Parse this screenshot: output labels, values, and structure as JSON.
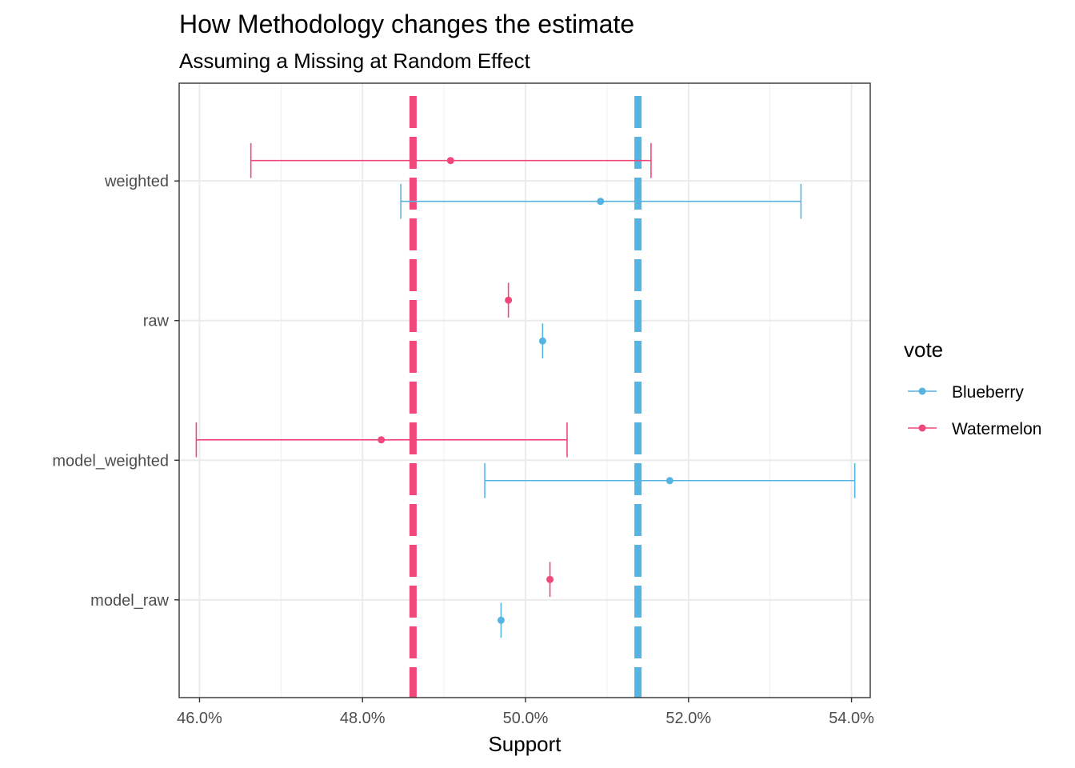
{
  "chart_data": {
    "type": "scatter",
    "title": "How Methodology changes the estimate",
    "subtitle": "Assuming a Missing at Random Effect",
    "xlabel": "Support",
    "ylabel": "",
    "xlim": [
      45.75,
      54.23
    ],
    "x_ticks": [
      46.0,
      48.0,
      50.0,
      52.0,
      54.0
    ],
    "x_tick_labels": [
      "46.0%",
      "48.0%",
      "50.0%",
      "52.0%",
      "54.0%"
    ],
    "categories": [
      "model_raw",
      "model_weighted",
      "raw",
      "weighted"
    ],
    "grid": true,
    "legend": {
      "title": "vote",
      "position": "right"
    },
    "reference_lines": [
      {
        "series": "Watermelon",
        "x": 48.62,
        "style": "dashed"
      },
      {
        "series": "Blueberry",
        "x": 51.38,
        "style": "dashed"
      }
    ],
    "series": [
      {
        "name": "Blueberry",
        "color": "#56b4e2",
        "points": [
          {
            "category": "model_raw",
            "x": 49.7,
            "lower": 49.7,
            "upper": 49.7
          },
          {
            "category": "model_weighted",
            "x": 51.77,
            "lower": 49.5,
            "upper": 54.04
          },
          {
            "category": "raw",
            "x": 50.21,
            "lower": 50.21,
            "upper": 50.21
          },
          {
            "category": "weighted",
            "x": 50.92,
            "lower": 48.47,
            "upper": 53.38
          }
        ]
      },
      {
        "name": "Watermelon",
        "color": "#f1487b",
        "points": [
          {
            "category": "model_raw",
            "x": 50.3,
            "lower": 50.3,
            "upper": 50.3
          },
          {
            "category": "model_weighted",
            "x": 48.23,
            "lower": 45.96,
            "upper": 50.51
          },
          {
            "category": "raw",
            "x": 49.79,
            "lower": 49.79,
            "upper": 49.79
          },
          {
            "category": "weighted",
            "x": 49.08,
            "lower": 46.63,
            "upper": 51.54
          }
        ]
      }
    ]
  }
}
